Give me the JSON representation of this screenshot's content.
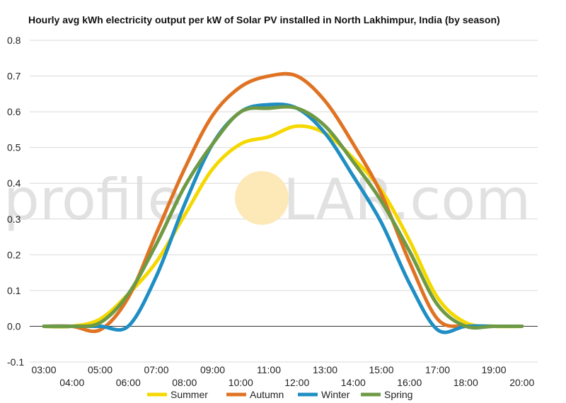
{
  "watermark": {
    "text_left": "profile",
    "text_right": "LAR.com",
    "sun_color": "#fde9b8"
  },
  "chart_data": {
    "type": "line",
    "title": "Hourly avg kWh electricity output per kW of Solar PV installed in North Lakhimpur, India (by season)",
    "xlabel": "",
    "ylabel": "",
    "x": [
      "03:00",
      "04:00",
      "05:00",
      "06:00",
      "07:00",
      "08:00",
      "09:00",
      "10:00",
      "11:00",
      "12:00",
      "13:00",
      "14:00",
      "15:00",
      "16:00",
      "17:00",
      "18:00",
      "19:00",
      "20:00"
    ],
    "x_tick_labels_top": [
      "03:00",
      "05:00",
      "07:00",
      "09:00",
      "11:00",
      "13:00",
      "15:00",
      "17:00",
      "19:00"
    ],
    "x_tick_labels_bottom": [
      "04:00",
      "06:00",
      "08:00",
      "10:00",
      "12:00",
      "14:00",
      "16:00",
      "18:00",
      "20:00"
    ],
    "ylim": [
      -0.1,
      0.8
    ],
    "y_ticks": [
      "-0.1",
      "0.0",
      "0.1",
      "0.2",
      "0.3",
      "0.4",
      "0.5",
      "0.6",
      "0.7",
      "0.8"
    ],
    "grid": true,
    "legend_position": "bottom",
    "series": [
      {
        "name": "Summer",
        "color": "#f5d800",
        "values": [
          0.0,
          0.0,
          0.02,
          0.09,
          0.18,
          0.31,
          0.44,
          0.51,
          0.53,
          0.56,
          0.54,
          0.47,
          0.38,
          0.24,
          0.08,
          0.01,
          0.0,
          0.0
        ]
      },
      {
        "name": "Autumn",
        "color": "#e07323",
        "values": [
          0.0,
          0.0,
          -0.01,
          0.08,
          0.26,
          0.44,
          0.59,
          0.67,
          0.7,
          0.7,
          0.63,
          0.51,
          0.37,
          0.18,
          0.02,
          0.0,
          0.0,
          0.0
        ]
      },
      {
        "name": "Winter",
        "color": "#1f8ec3",
        "values": [
          0.0,
          0.0,
          0.0,
          0.0,
          0.14,
          0.34,
          0.51,
          0.6,
          0.62,
          0.61,
          0.54,
          0.42,
          0.29,
          0.12,
          -0.01,
          0.0,
          0.0,
          0.0
        ]
      },
      {
        "name": "Spring",
        "color": "#6e9a45",
        "values": [
          0.0,
          0.0,
          0.01,
          0.09,
          0.23,
          0.39,
          0.51,
          0.6,
          0.61,
          0.61,
          0.56,
          0.46,
          0.35,
          0.21,
          0.06,
          0.0,
          0.0,
          0.0
        ]
      }
    ]
  }
}
